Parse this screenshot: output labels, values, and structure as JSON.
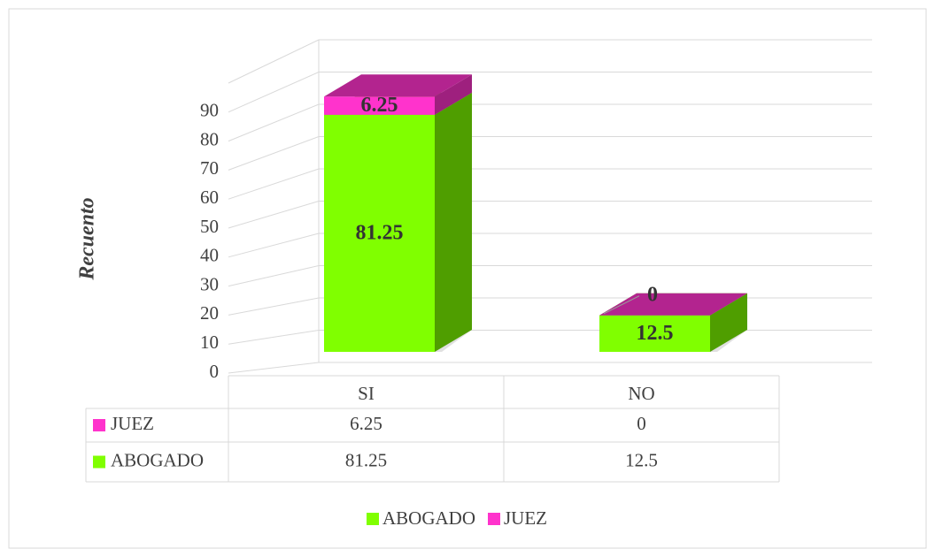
{
  "chart_data": {
    "type": "bar3d_stacked",
    "y_label": "Recuento",
    "categories": [
      "SI",
      "NO"
    ],
    "series": [
      {
        "name": "ABOGADO",
        "color": "#80ff00",
        "values": [
          81.25,
          12.5
        ]
      },
      {
        "name": "JUEZ",
        "color": "#ff33cc",
        "values": [
          6.25,
          0
        ]
      }
    ],
    "ylim": [
      0,
      100
    ],
    "yticks": [
      0,
      10,
      20,
      30,
      40,
      50,
      60,
      70,
      80,
      90
    ],
    "grid": true,
    "legend": "bottom",
    "data_table": true
  }
}
